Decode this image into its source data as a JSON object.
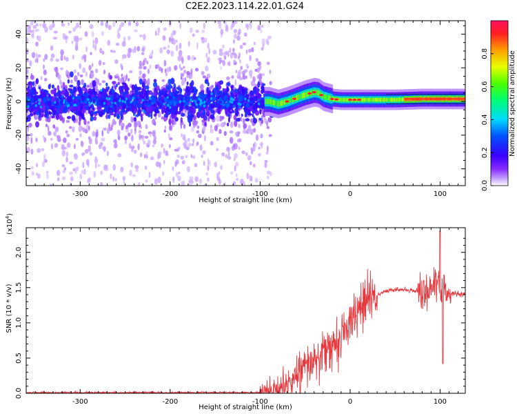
{
  "title": "C2E2.2023.114.22.01.G24",
  "chart_data": [
    {
      "type": "heatmap",
      "xlabel": "Height of straight line (km)",
      "ylabel": "Frequency (Hz)",
      "xlim": [
        -360,
        128
      ],
      "ylim": [
        -50,
        48
      ],
      "xticks": [
        -300,
        -200,
        -100,
        0,
        100
      ],
      "yticks": [
        -40,
        -20,
        0,
        20,
        40
      ],
      "colorbar": {
        "label": "Normalized spectral amplitude",
        "range": [
          0.0,
          1.0
        ],
        "ticks": [
          0.0,
          0.2,
          0.4,
          0.6,
          0.8
        ],
        "colormap": "rainbow"
      },
      "ridge": {
        "description": "signal frequency track",
        "x": [
          -90,
          -80,
          -70,
          -60,
          -50,
          -40,
          -35,
          -30,
          -20,
          -10,
          0,
          20,
          50,
          80,
          100,
          128
        ],
        "y": [
          0.0,
          -1.5,
          0.0,
          2.0,
          4.0,
          5.5,
          5.0,
          3.0,
          1.5,
          1.0,
          1.0,
          1.0,
          1.0,
          1.5,
          1.5,
          1.5
        ]
      }
    },
    {
      "type": "line",
      "xlabel": "Height of straight line (km)",
      "ylabel": "SNR (10 * v/v)",
      "y_scale_label": "(x10",
      "y_scale_exponent": "4",
      "xlim": [
        -360,
        128
      ],
      "ylim": [
        0.0,
        2.35
      ],
      "xticks": [
        -300,
        -200,
        -100,
        0,
        100
      ],
      "yticks": [
        0.0,
        0.5,
        1.0,
        1.5,
        2.0
      ],
      "ytick_labels": [
        "0.0",
        "0.5",
        "1.0",
        "1.5",
        "2.0"
      ],
      "series": [
        {
          "color": "#e8383d",
          "x": [
            -360,
            -300,
            -200,
            -100,
            -80,
            -70,
            -60,
            -50,
            -40,
            -30,
            -20,
            -10,
            0,
            10,
            20,
            30,
            40,
            50,
            60,
            70,
            80,
            90,
            95,
            100,
            105,
            110,
            120,
            128
          ],
          "y": [
            0.01,
            0.01,
            0.01,
            0.01,
            0.03,
            0.12,
            0.25,
            0.35,
            0.45,
            0.55,
            0.65,
            0.8,
            1.0,
            1.2,
            1.32,
            1.4,
            1.45,
            1.47,
            1.47,
            1.46,
            1.45,
            1.48,
            1.55,
            1.5,
            1.4,
            1.42,
            1.41,
            1.4
          ]
        }
      ]
    }
  ]
}
